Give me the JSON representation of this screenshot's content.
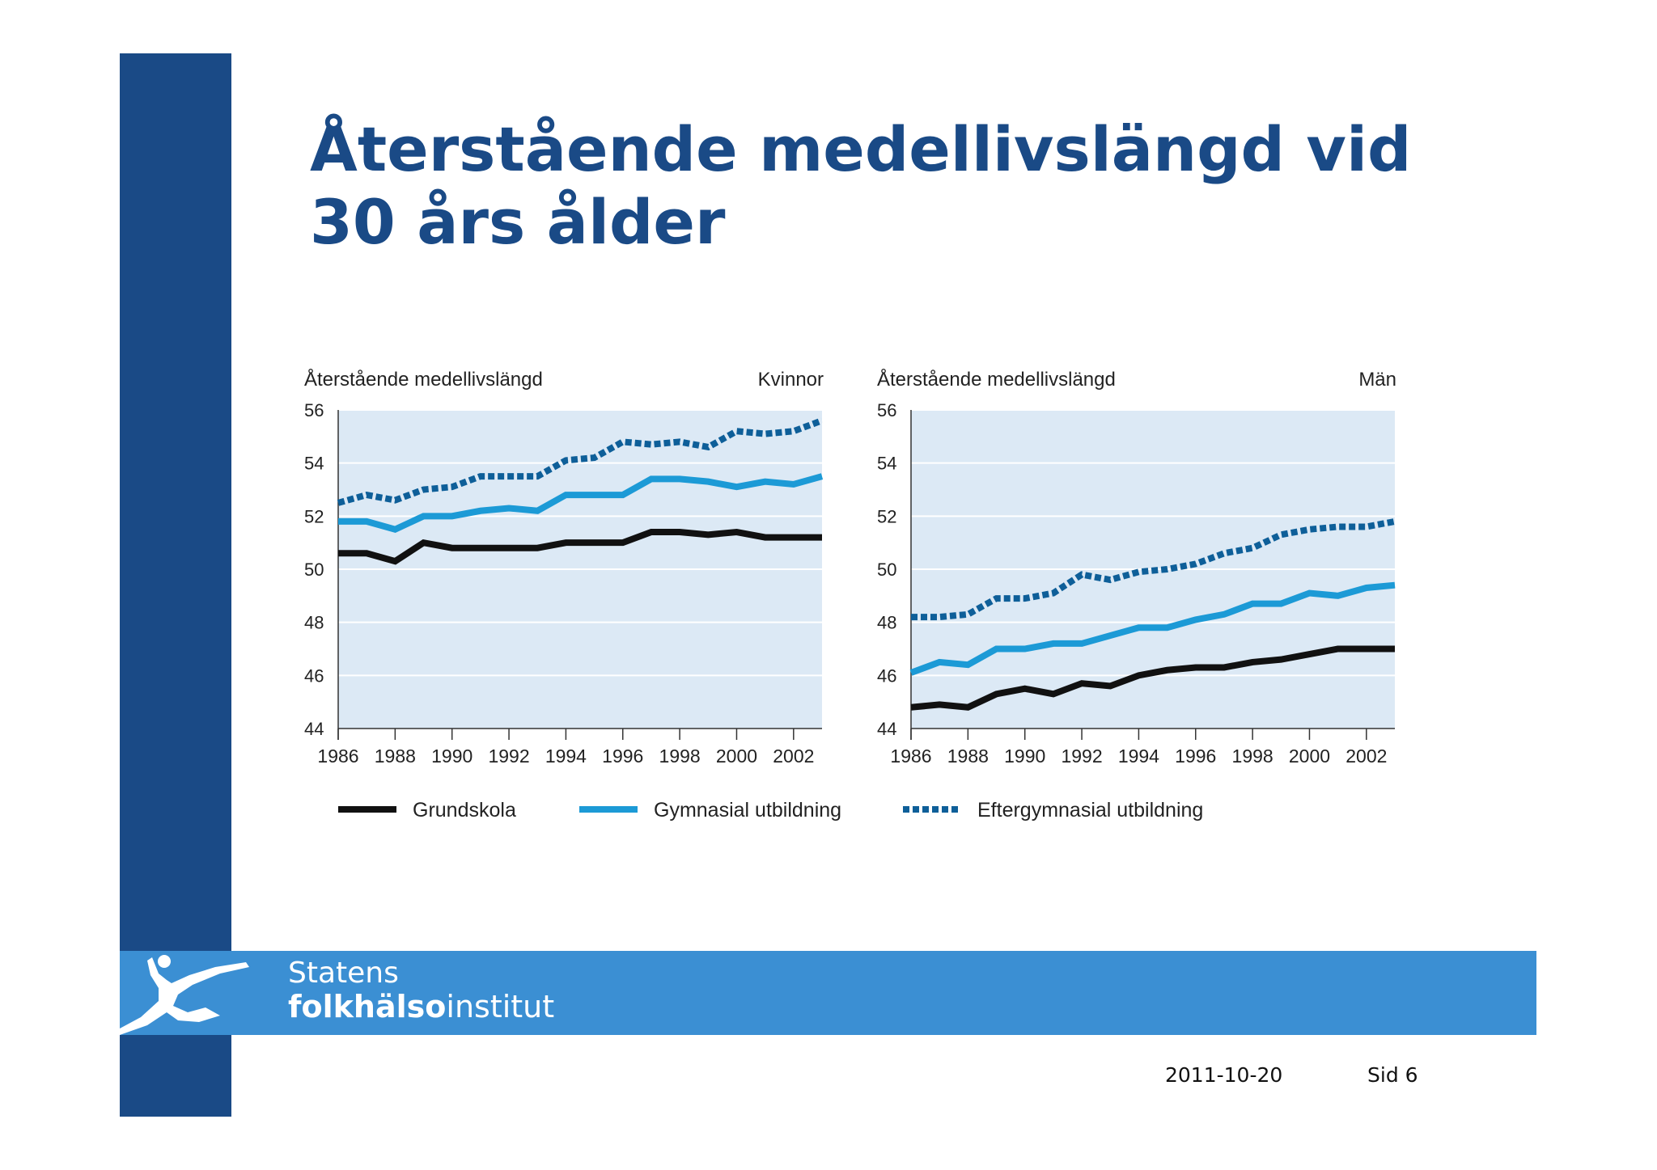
{
  "title_line1": "Återstående medellivslängd vid",
  "title_line2": "30 års ålder",
  "logo": {
    "line1": "Statens",
    "line2_bold": "folkhälso",
    "line2_normal": "institut"
  },
  "footer": {
    "date": "2011-10-20",
    "page": "Sid 6"
  },
  "colors": {
    "sidebar": "#1a4a86",
    "footer_band": "#3b8fd3",
    "title": "#1a4a86",
    "plot_bg": "#dce9f5",
    "grundskola": "#111111",
    "gymnasial": "#1c9ad6",
    "eftergymnasial": "#0e5f99"
  },
  "chart_data": [
    {
      "type": "line",
      "ylabel": "Återstående medellivslängd",
      "panel_label": "Kvinnor",
      "ylim": [
        44,
        56
      ],
      "yticks": [
        "44",
        "46",
        "48",
        "50",
        "52",
        "54",
        "56"
      ],
      "xlim": [
        1986,
        2003
      ],
      "xticks": [
        "1986",
        "1988",
        "1990",
        "1992",
        "1994",
        "1996",
        "1998",
        "2000",
        "2002"
      ],
      "grid": true,
      "x": [
        1986,
        1987,
        1988,
        1989,
        1990,
        1991,
        1992,
        1993,
        1994,
        1995,
        1996,
        1997,
        1998,
        1999,
        2000,
        2001,
        2002,
        2003
      ],
      "series": [
        {
          "name": "Grundskola",
          "style": "solid",
          "values": [
            50.6,
            50.6,
            50.3,
            51.0,
            50.8,
            50.8,
            50.8,
            50.8,
            51.0,
            51.0,
            51.0,
            51.4,
            51.4,
            51.3,
            51.4,
            51.2,
            51.2,
            51.2
          ]
        },
        {
          "name": "Gymnasial utbildning",
          "style": "solid",
          "values": [
            51.8,
            51.8,
            51.5,
            52.0,
            52.0,
            52.2,
            52.3,
            52.2,
            52.8,
            52.8,
            52.8,
            53.4,
            53.4,
            53.3,
            53.1,
            53.3,
            53.2,
            53.5
          ]
        },
        {
          "name": "Eftergymnasial utbildning",
          "style": "dotted",
          "values": [
            52.5,
            52.8,
            52.6,
            53.0,
            53.1,
            53.5,
            53.5,
            53.5,
            54.1,
            54.2,
            54.8,
            54.7,
            54.8,
            54.6,
            55.2,
            55.1,
            55.2,
            55.6
          ]
        }
      ]
    },
    {
      "type": "line",
      "ylabel": "Återstående medellivslängd",
      "panel_label": "Män",
      "ylim": [
        44,
        56
      ],
      "yticks": [
        "44",
        "46",
        "48",
        "50",
        "52",
        "54",
        "56"
      ],
      "xlim": [
        1986,
        2003
      ],
      "xticks": [
        "1986",
        "1988",
        "1990",
        "1992",
        "1994",
        "1996",
        "1998",
        "2000",
        "2002"
      ],
      "grid": true,
      "x": [
        1986,
        1987,
        1988,
        1989,
        1990,
        1991,
        1992,
        1993,
        1994,
        1995,
        1996,
        1997,
        1998,
        1999,
        2000,
        2001,
        2002,
        2003
      ],
      "series": [
        {
          "name": "Grundskola",
          "style": "solid",
          "values": [
            44.8,
            44.9,
            44.8,
            45.3,
            45.5,
            45.3,
            45.7,
            45.6,
            46.0,
            46.2,
            46.3,
            46.3,
            46.5,
            46.6,
            46.8,
            47.0,
            47.0,
            47.0
          ]
        },
        {
          "name": "Gymnasial utbildning",
          "style": "solid",
          "values": [
            46.1,
            46.5,
            46.4,
            47.0,
            47.0,
            47.2,
            47.2,
            47.5,
            47.8,
            47.8,
            48.1,
            48.3,
            48.7,
            48.7,
            49.1,
            49.0,
            49.3,
            49.4
          ]
        },
        {
          "name": "Eftergymnasial utbildning",
          "style": "dotted",
          "values": [
            48.2,
            48.2,
            48.3,
            48.9,
            48.9,
            49.1,
            49.8,
            49.6,
            49.9,
            50.0,
            50.2,
            50.6,
            50.8,
            51.3,
            51.5,
            51.6,
            51.6,
            51.8
          ]
        }
      ]
    }
  ],
  "legend": [
    {
      "name": "Grundskola",
      "style": "solid"
    },
    {
      "name": "Gymnasial utbildning",
      "style": "solid"
    },
    {
      "name": "Eftergymnasial utbildning",
      "style": "dotted"
    }
  ]
}
